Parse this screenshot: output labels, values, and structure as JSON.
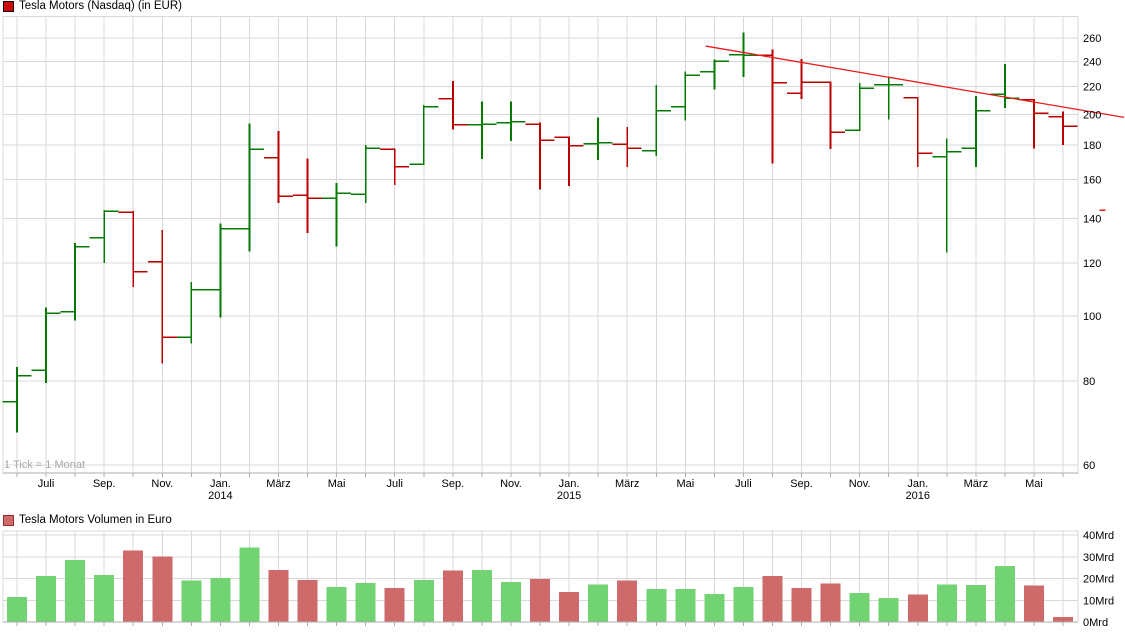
{
  "chart_data": [
    {
      "type": "ohlc",
      "title": "Tesla Motors (Nasdaq) (in EUR)",
      "note": "1 Tick = 1 Monat",
      "y_scale": "log",
      "y_unit": "EUR",
      "legend_position": "top-left",
      "grid": true,
      "y_ticks": [
        260,
        240,
        220,
        200,
        180,
        160,
        140,
        120,
        100,
        80,
        60
      ],
      "x_ticks": [
        {
          "label": "Juli",
          "month_index": 1
        },
        {
          "label": "Sep.",
          "month_index": 3
        },
        {
          "label": "Nov.",
          "month_index": 5
        },
        {
          "label": "Jan.",
          "year": "2014",
          "month_index": 7
        },
        {
          "label": "März",
          "month_index": 9
        },
        {
          "label": "Mai",
          "month_index": 11
        },
        {
          "label": "Juli",
          "month_index": 13
        },
        {
          "label": "Sep.",
          "month_index": 15
        },
        {
          "label": "Nov.",
          "month_index": 17
        },
        {
          "label": "Jan.",
          "year": "2015",
          "month_index": 19
        },
        {
          "label": "März",
          "month_index": 21
        },
        {
          "label": "Mai",
          "month_index": 23
        },
        {
          "label": "Juli",
          "month_index": 25
        },
        {
          "label": "Sep.",
          "month_index": 27
        },
        {
          "label": "Nov.",
          "month_index": 29
        },
        {
          "label": "Jan.",
          "year": "2016",
          "month_index": 31
        },
        {
          "label": "März",
          "month_index": 33
        },
        {
          "label": "Mai",
          "month_index": 35
        }
      ],
      "months": [
        "Juni 2013",
        "Juli 2013",
        "Aug. 2013",
        "Sep. 2013",
        "Okt. 2013",
        "Nov. 2013",
        "Dez. 2013",
        "Jan. 2014",
        "Feb. 2014",
        "März 2014",
        "Apr. 2014",
        "Mai 2014",
        "Juni 2014",
        "Juli 2014",
        "Aug. 2014",
        "Sep. 2014",
        "Okt. 2014",
        "Nov. 2014",
        "Dez. 2014",
        "Jan. 2015",
        "Feb. 2015",
        "März 2015",
        "Apr. 2015",
        "Mai 2015",
        "Juni 2015",
        "Juli 2015",
        "Aug. 2015",
        "Sep. 2015",
        "Okt. 2015",
        "Nov. 2015",
        "Dez. 2015",
        "Jan. 2016",
        "Feb. 2016",
        "März 2016",
        "Apr. 2016",
        "Mai 2016",
        "Juni 2016"
      ],
      "series": {
        "open": [
          74.5,
          83,
          101.5,
          131,
          143,
          120.5,
          93,
          109.5,
          135,
          172.5,
          151.5,
          150,
          152,
          177.5,
          168.5,
          211,
          193,
          194.5,
          193.5,
          185,
          181,
          180.5,
          176.5,
          205.5,
          231.5,
          245.5,
          245,
          215,
          223.5,
          189.5,
          221.5,
          212,
          173,
          178,
          214.5,
          210.5,
          198.5
        ],
        "high": [
          84,
          103,
          128.5,
          144,
          143.5,
          134.5,
          112.5,
          137.5,
          194,
          189,
          172,
          158,
          180,
          178,
          206.5,
          224.5,
          209,
          209,
          194.5,
          185.5,
          198,
          191.5,
          221.5,
          232,
          241.5,
          265,
          250,
          242,
          224,
          223,
          228,
          212.5,
          184,
          213,
          238,
          211,
          202
        ],
        "low": [
          67,
          79.5,
          98.5,
          120,
          110.5,
          85,
          91,
          99.5,
          125,
          147.5,
          133,
          127,
          147.5,
          157,
          168,
          190,
          171.5,
          182.5,
          154.5,
          156.5,
          171,
          167,
          173.5,
          196,
          218,
          227.5,
          169,
          211,
          177.5,
          189,
          196.5,
          167,
          124.5,
          167,
          204.5,
          178,
          180
        ],
        "close": [
          81.5,
          101,
          127,
          143.5,
          116.5,
          93,
          109.5,
          135,
          177.5,
          151,
          150,
          152.5,
          178,
          167,
          205.5,
          193,
          193.5,
          195,
          183,
          179.5,
          181.5,
          178,
          202.5,
          229,
          240,
          245,
          223,
          223.5,
          188,
          219,
          221.5,
          175,
          176,
          202.5,
          211.5,
          201,
          192
        ],
        "direction": [
          "up",
          "up",
          "up",
          "up",
          "down",
          "down",
          "up",
          "up",
          "up",
          "down",
          "down",
          "up",
          "up",
          "down",
          "up",
          "down",
          "up",
          "up",
          "down",
          "down",
          "up",
          "down",
          "up",
          "up",
          "up",
          "up",
          "down",
          "down",
          "down",
          "up",
          "up",
          "down",
          "up",
          "up",
          "up",
          "down",
          "down"
        ]
      },
      "trendline": {
        "start": {
          "month_index": 23.7,
          "value": 253
        },
        "end": {
          "month_index": 38.1,
          "value": 198
        }
      },
      "stray_mark": {
        "month_index": 37.35,
        "value": 144,
        "length": 6
      },
      "colors": {
        "up": "#047a04",
        "down": "#b80000",
        "trendline": "#ea1c1c",
        "legend_swatch": "#cd0a0a",
        "grid": "#d8d8d8",
        "axis": "#adadad"
      }
    },
    {
      "type": "bar",
      "title": "Tesla Motors Volumen in Euro",
      "unit": "Mrd EUR",
      "grid": true,
      "y_ticks": [
        {
          "label": "40Mrd",
          "value": 40
        },
        {
          "label": "30Mrd",
          "value": 30
        },
        {
          "label": "20Mrd",
          "value": 20
        },
        {
          "label": "10Mrd",
          "value": 10
        },
        {
          "label": "0Mrd",
          "value": 0
        }
      ],
      "values": [
        11.5,
        21.2,
        28.4,
        21.7,
        32.9,
        30.1,
        19,
        20.3,
        34.2,
        24,
        19.4,
        16.1,
        18,
        15.7,
        19.2,
        23.7,
        24,
        18.4,
        19.7,
        13.8,
        17.2,
        19,
        15.2,
        15.2,
        12.9,
        16.1,
        21.2,
        15.7,
        17.6,
        13.4,
        11.1,
        12.6,
        17.2,
        16.9,
        25.7,
        16.7,
        2.2
      ],
      "colors": {
        "up": "#72d372",
        "down": "#ce6a6a",
        "legend_swatch": "#ce6a6a",
        "legend_border": "#9e2b2b"
      }
    }
  ]
}
